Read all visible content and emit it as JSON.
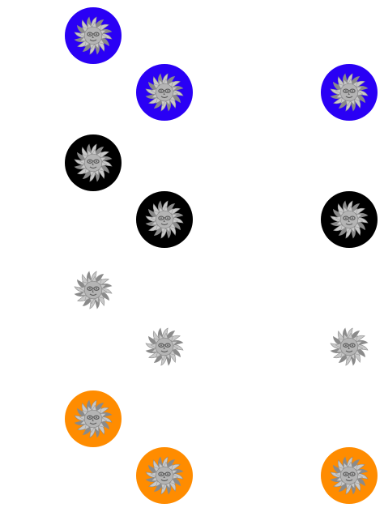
{
  "badge_colors": {
    "blue": "#2a00f5",
    "black": "#000000",
    "white": "#ffffff",
    "orange": "#ff8c00"
  },
  "sun_colors": {
    "ray_light": "#c8c8c8",
    "ray_dark": "#8a8a8a",
    "face": "#b4b4b4",
    "feature": "#5a5a5a"
  },
  "rows": [
    {
      "color": "blue",
      "icons": [
        "sun-icon",
        "sun-icon",
        "sun-icon"
      ]
    },
    {
      "color": "black",
      "icons": [
        "sun-icon",
        "sun-icon",
        "sun-icon"
      ]
    },
    {
      "color": "white",
      "icons": [
        "sun-icon",
        "sun-icon",
        "sun-icon"
      ]
    },
    {
      "color": "orange",
      "icons": [
        "sun-icon",
        "sun-icon",
        "sun-icon"
      ]
    }
  ]
}
